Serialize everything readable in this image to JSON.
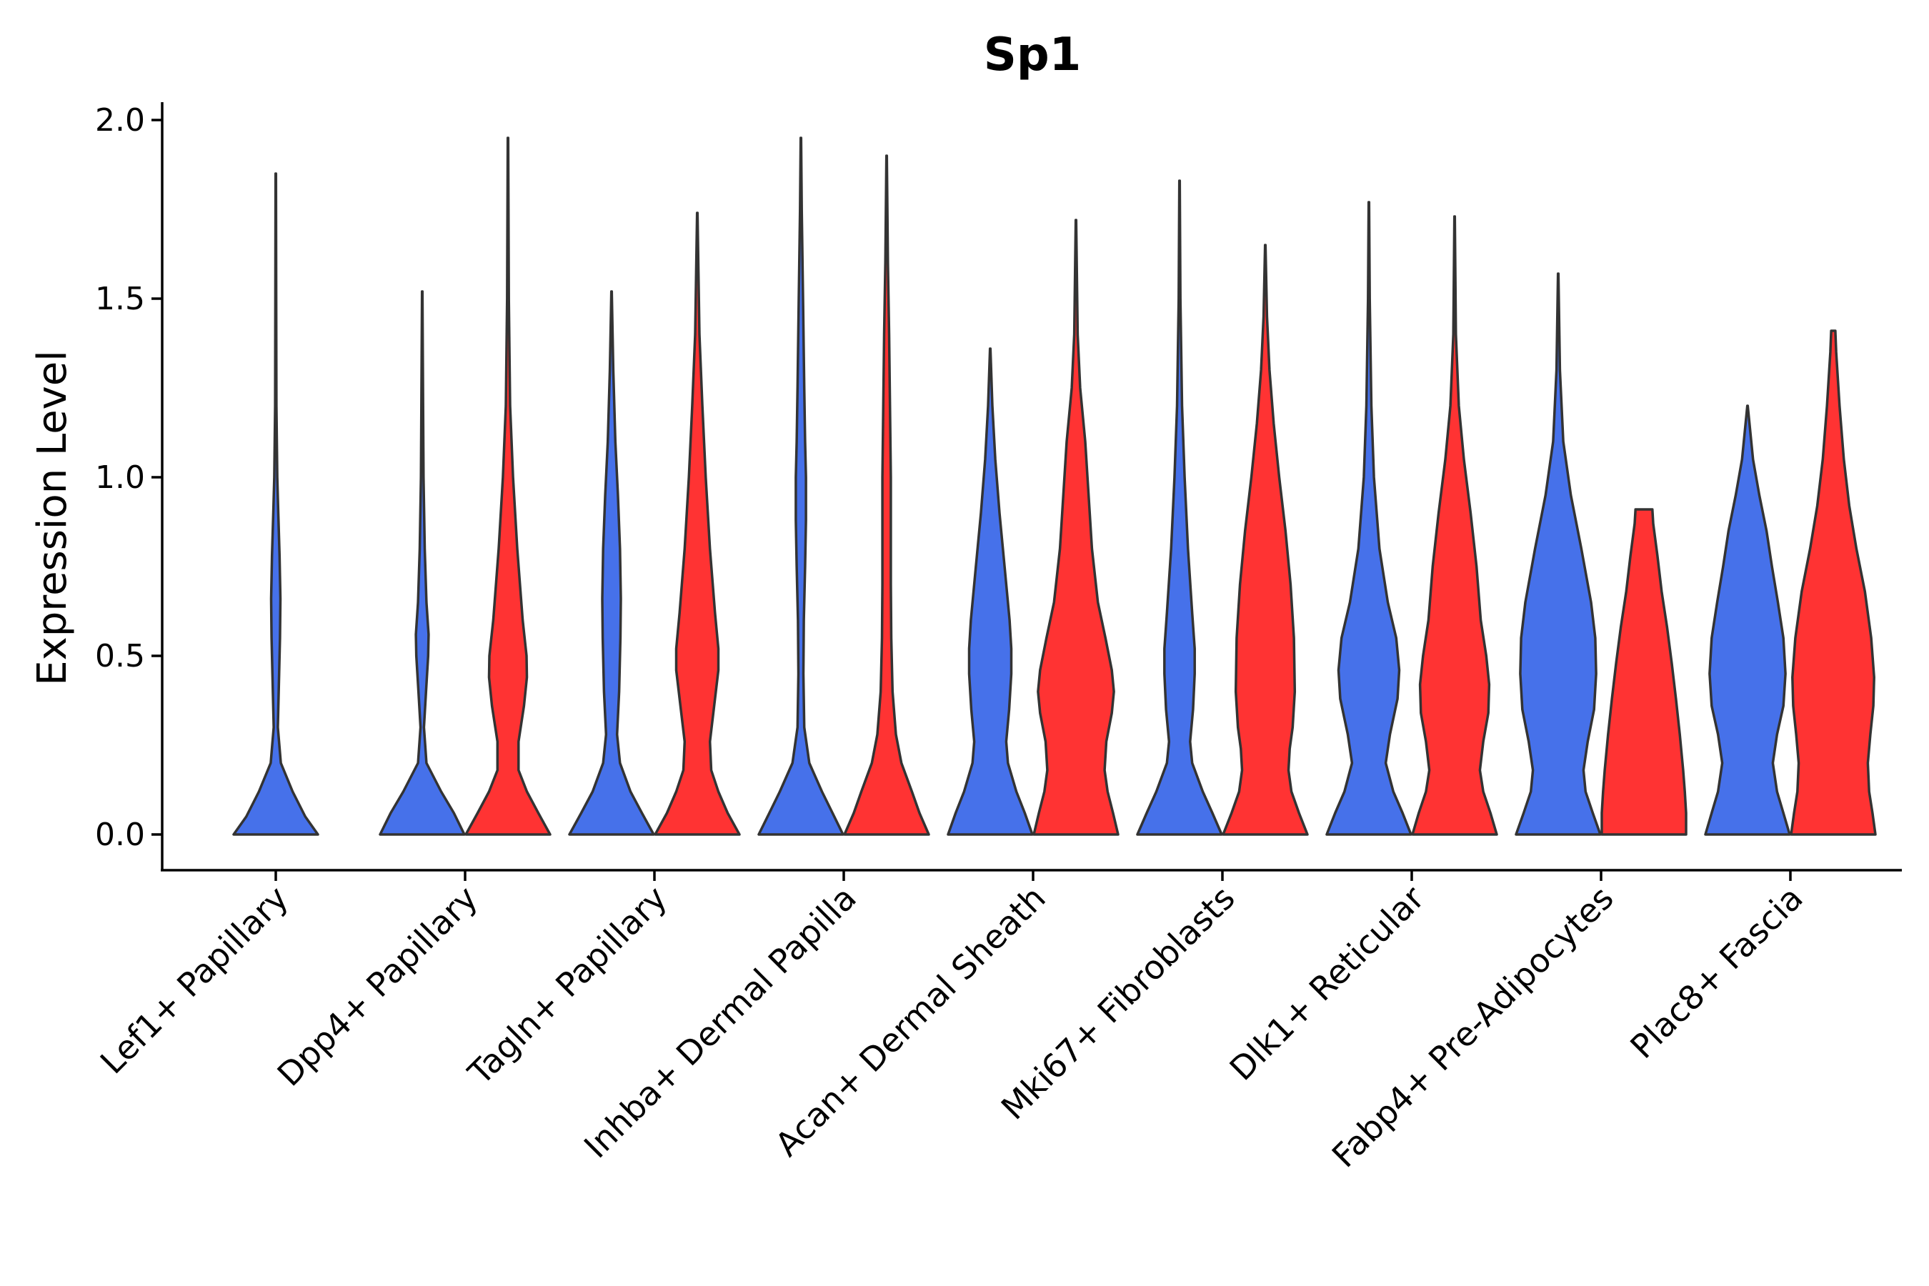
{
  "chart_data": {
    "type": "violin",
    "title": "Sp1",
    "xlabel": "",
    "ylabel": "Expression Level",
    "ylim": [
      -0.1,
      2.05
    ],
    "yticks": [
      0.0,
      0.5,
      1.0,
      1.5,
      2.0
    ],
    "ytick_labels": [
      "0.0",
      "0.5",
      "1.0",
      "1.5",
      "2.0"
    ],
    "colors": {
      "group1": "#4671EA",
      "group2": "#FF3333",
      "outline": "#333333"
    },
    "categories": [
      "Lef1+ Papillary",
      "Dpp4+ Papillary",
      "Tagln+ Papillary",
      "Inhba+ Dermal Papilla",
      "Acan+ Dermal Sheath",
      "Mki67+ Fibroblasts",
      "Dlk1+ Reticular",
      "Fabp4+ Pre-Adipocytes",
      "Plac8+ Fascia"
    ],
    "violins": [
      {
        "category": 0,
        "group": "group1",
        "max": 1.85,
        "profile": [
          [
            0,
            1
          ],
          [
            0.05,
            0.7
          ],
          [
            0.12,
            0.4
          ],
          [
            0.2,
            0.12
          ],
          [
            0.3,
            0.05
          ],
          [
            0.45,
            0.08
          ],
          [
            0.55,
            0.1
          ],
          [
            0.66,
            0.11
          ],
          [
            0.78,
            0.09
          ],
          [
            0.9,
            0.06
          ],
          [
            1.0,
            0.035
          ],
          [
            1.2,
            0.015
          ],
          [
            1.5,
            0.01
          ],
          [
            1.85,
            0.005
          ]
        ]
      },
      {
        "category": 1,
        "group": "group1",
        "max": 1.52,
        "profile": [
          [
            0,
            1
          ],
          [
            0.06,
            0.75
          ],
          [
            0.12,
            0.45
          ],
          [
            0.2,
            0.1
          ],
          [
            0.3,
            0.04
          ],
          [
            0.4,
            0.09
          ],
          [
            0.5,
            0.14
          ],
          [
            0.56,
            0.15
          ],
          [
            0.65,
            0.1
          ],
          [
            0.8,
            0.06
          ],
          [
            1.0,
            0.03
          ],
          [
            1.2,
            0.02
          ],
          [
            1.52,
            0.005
          ]
        ]
      },
      {
        "category": 1,
        "group": "group2",
        "max": 1.95,
        "profile": [
          [
            0,
            1
          ],
          [
            0.06,
            0.72
          ],
          [
            0.12,
            0.45
          ],
          [
            0.18,
            0.25
          ],
          [
            0.26,
            0.25
          ],
          [
            0.36,
            0.38
          ],
          [
            0.44,
            0.45
          ],
          [
            0.5,
            0.44
          ],
          [
            0.6,
            0.35
          ],
          [
            0.8,
            0.22
          ],
          [
            1.0,
            0.12
          ],
          [
            1.2,
            0.05
          ],
          [
            1.5,
            0.02
          ],
          [
            1.95,
            0.005
          ]
        ]
      },
      {
        "category": 2,
        "group": "group1",
        "max": 1.52,
        "profile": [
          [
            0,
            1
          ],
          [
            0.06,
            0.72
          ],
          [
            0.12,
            0.45
          ],
          [
            0.2,
            0.2
          ],
          [
            0.28,
            0.13
          ],
          [
            0.4,
            0.18
          ],
          [
            0.55,
            0.21
          ],
          [
            0.66,
            0.22
          ],
          [
            0.8,
            0.2
          ],
          [
            0.95,
            0.15
          ],
          [
            1.1,
            0.09
          ],
          [
            1.3,
            0.04
          ],
          [
            1.52,
            0.005
          ]
        ]
      },
      {
        "category": 2,
        "group": "group2",
        "max": 1.74,
        "profile": [
          [
            0,
            1
          ],
          [
            0.06,
            0.72
          ],
          [
            0.12,
            0.5
          ],
          [
            0.18,
            0.33
          ],
          [
            0.26,
            0.3
          ],
          [
            0.36,
            0.4
          ],
          [
            0.46,
            0.5
          ],
          [
            0.52,
            0.5
          ],
          [
            0.62,
            0.42
          ],
          [
            0.8,
            0.3
          ],
          [
            1.0,
            0.2
          ],
          [
            1.2,
            0.12
          ],
          [
            1.4,
            0.05
          ],
          [
            1.74,
            0.005
          ]
        ]
      },
      {
        "category": 3,
        "group": "group1",
        "max": 1.95,
        "profile": [
          [
            0,
            1
          ],
          [
            0.06,
            0.75
          ],
          [
            0.12,
            0.5
          ],
          [
            0.2,
            0.2
          ],
          [
            0.3,
            0.08
          ],
          [
            0.45,
            0.06
          ],
          [
            0.6,
            0.07
          ],
          [
            0.75,
            0.1
          ],
          [
            0.88,
            0.12
          ],
          [
            1.0,
            0.12
          ],
          [
            1.1,
            0.1
          ],
          [
            1.25,
            0.08
          ],
          [
            1.5,
            0.05
          ],
          [
            1.75,
            0.02
          ],
          [
            1.95,
            0.005
          ]
        ]
      },
      {
        "category": 3,
        "group": "group2",
        "max": 1.9,
        "profile": [
          [
            0,
            1
          ],
          [
            0.06,
            0.78
          ],
          [
            0.12,
            0.6
          ],
          [
            0.2,
            0.35
          ],
          [
            0.28,
            0.22
          ],
          [
            0.4,
            0.14
          ],
          [
            0.55,
            0.11
          ],
          [
            0.7,
            0.1
          ],
          [
            0.85,
            0.1
          ],
          [
            1.0,
            0.1
          ],
          [
            1.2,
            0.08
          ],
          [
            1.4,
            0.06
          ],
          [
            1.6,
            0.03
          ],
          [
            1.9,
            0.005
          ]
        ]
      },
      {
        "category": 4,
        "group": "group1",
        "max": 1.36,
        "profile": [
          [
            0,
            1
          ],
          [
            0.06,
            0.82
          ],
          [
            0.12,
            0.62
          ],
          [
            0.2,
            0.42
          ],
          [
            0.26,
            0.38
          ],
          [
            0.35,
            0.45
          ],
          [
            0.45,
            0.5
          ],
          [
            0.52,
            0.5
          ],
          [
            0.6,
            0.46
          ],
          [
            0.75,
            0.34
          ],
          [
            0.9,
            0.22
          ],
          [
            1.05,
            0.12
          ],
          [
            1.2,
            0.05
          ],
          [
            1.36,
            0.005
          ]
        ]
      },
      {
        "category": 4,
        "group": "group2",
        "max": 1.72,
        "profile": [
          [
            0,
            1
          ],
          [
            0.06,
            0.88
          ],
          [
            0.12,
            0.75
          ],
          [
            0.18,
            0.68
          ],
          [
            0.26,
            0.72
          ],
          [
            0.34,
            0.85
          ],
          [
            0.4,
            0.9
          ],
          [
            0.46,
            0.85
          ],
          [
            0.55,
            0.7
          ],
          [
            0.65,
            0.52
          ],
          [
            0.8,
            0.38
          ],
          [
            0.95,
            0.3
          ],
          [
            1.1,
            0.22
          ],
          [
            1.25,
            0.1
          ],
          [
            1.4,
            0.04
          ],
          [
            1.72,
            0.005
          ]
        ]
      },
      {
        "category": 5,
        "group": "group1",
        "max": 1.83,
        "profile": [
          [
            0,
            1
          ],
          [
            0.06,
            0.78
          ],
          [
            0.12,
            0.55
          ],
          [
            0.2,
            0.3
          ],
          [
            0.26,
            0.25
          ],
          [
            0.35,
            0.32
          ],
          [
            0.45,
            0.36
          ],
          [
            0.52,
            0.36
          ],
          [
            0.62,
            0.3
          ],
          [
            0.8,
            0.2
          ],
          [
            1.0,
            0.12
          ],
          [
            1.2,
            0.06
          ],
          [
            1.5,
            0.02
          ],
          [
            1.83,
            0.005
          ]
        ]
      },
      {
        "category": 5,
        "group": "group2",
        "max": 1.65,
        "profile": [
          [
            0,
            1
          ],
          [
            0.06,
            0.8
          ],
          [
            0.12,
            0.62
          ],
          [
            0.18,
            0.55
          ],
          [
            0.24,
            0.58
          ],
          [
            0.3,
            0.65
          ],
          [
            0.4,
            0.7
          ],
          [
            0.55,
            0.68
          ],
          [
            0.7,
            0.6
          ],
          [
            0.85,
            0.48
          ],
          [
            1.0,
            0.33
          ],
          [
            1.15,
            0.2
          ],
          [
            1.3,
            0.1
          ],
          [
            1.45,
            0.04
          ],
          [
            1.65,
            0.005
          ]
        ]
      },
      {
        "category": 6,
        "group": "group1",
        "max": 1.77,
        "profile": [
          [
            0,
            1
          ],
          [
            0.06,
            0.8
          ],
          [
            0.12,
            0.58
          ],
          [
            0.2,
            0.4
          ],
          [
            0.28,
            0.5
          ],
          [
            0.38,
            0.68
          ],
          [
            0.46,
            0.72
          ],
          [
            0.55,
            0.65
          ],
          [
            0.65,
            0.45
          ],
          [
            0.8,
            0.25
          ],
          [
            1.0,
            0.12
          ],
          [
            1.2,
            0.06
          ],
          [
            1.5,
            0.02
          ],
          [
            1.77,
            0.005
          ]
        ]
      },
      {
        "category": 6,
        "group": "group2",
        "max": 1.73,
        "profile": [
          [
            0,
            1
          ],
          [
            0.06,
            0.85
          ],
          [
            0.12,
            0.68
          ],
          [
            0.18,
            0.6
          ],
          [
            0.26,
            0.68
          ],
          [
            0.34,
            0.8
          ],
          [
            0.42,
            0.82
          ],
          [
            0.5,
            0.75
          ],
          [
            0.6,
            0.62
          ],
          [
            0.75,
            0.52
          ],
          [
            0.9,
            0.38
          ],
          [
            1.05,
            0.22
          ],
          [
            1.2,
            0.1
          ],
          [
            1.4,
            0.03
          ],
          [
            1.73,
            0.005
          ]
        ]
      },
      {
        "category": 7,
        "group": "group1",
        "max": 1.57,
        "profile": [
          [
            0,
            1
          ],
          [
            0.06,
            0.82
          ],
          [
            0.12,
            0.65
          ],
          [
            0.18,
            0.6
          ],
          [
            0.26,
            0.7
          ],
          [
            0.35,
            0.85
          ],
          [
            0.45,
            0.9
          ],
          [
            0.55,
            0.88
          ],
          [
            0.65,
            0.78
          ],
          [
            0.8,
            0.55
          ],
          [
            0.95,
            0.3
          ],
          [
            1.1,
            0.12
          ],
          [
            1.3,
            0.04
          ],
          [
            1.57,
            0.005
          ]
        ]
      },
      {
        "category": 7,
        "group": "group2",
        "max": 0.91,
        "profile": [
          [
            0,
            1
          ],
          [
            0.06,
            1.0
          ],
          [
            0.12,
            0.97
          ],
          [
            0.18,
            0.93
          ],
          [
            0.28,
            0.85
          ],
          [
            0.38,
            0.76
          ],
          [
            0.48,
            0.66
          ],
          [
            0.58,
            0.55
          ],
          [
            0.68,
            0.42
          ],
          [
            0.78,
            0.32
          ],
          [
            0.87,
            0.22
          ],
          [
            0.91,
            0.2
          ]
        ]
      },
      {
        "category": 8,
        "group": "group1",
        "max": 1.2,
        "profile": [
          [
            0,
            1
          ],
          [
            0.06,
            0.85
          ],
          [
            0.12,
            0.7
          ],
          [
            0.2,
            0.6
          ],
          [
            0.28,
            0.7
          ],
          [
            0.36,
            0.85
          ],
          [
            0.45,
            0.9
          ],
          [
            0.55,
            0.85
          ],
          [
            0.65,
            0.72
          ],
          [
            0.75,
            0.58
          ],
          [
            0.85,
            0.45
          ],
          [
            0.95,
            0.28
          ],
          [
            1.05,
            0.13
          ],
          [
            1.2,
            0.005
          ]
        ]
      },
      {
        "category": 8,
        "group": "group2",
        "max": 1.41,
        "profile": [
          [
            0,
            1
          ],
          [
            0.06,
            0.93
          ],
          [
            0.12,
            0.85
          ],
          [
            0.2,
            0.82
          ],
          [
            0.28,
            0.88
          ],
          [
            0.36,
            0.95
          ],
          [
            0.44,
            0.97
          ],
          [
            0.55,
            0.9
          ],
          [
            0.68,
            0.75
          ],
          [
            0.8,
            0.55
          ],
          [
            0.92,
            0.38
          ],
          [
            1.05,
            0.25
          ],
          [
            1.2,
            0.15
          ],
          [
            1.35,
            0.07
          ],
          [
            1.41,
            0.05
          ]
        ]
      }
    ]
  }
}
